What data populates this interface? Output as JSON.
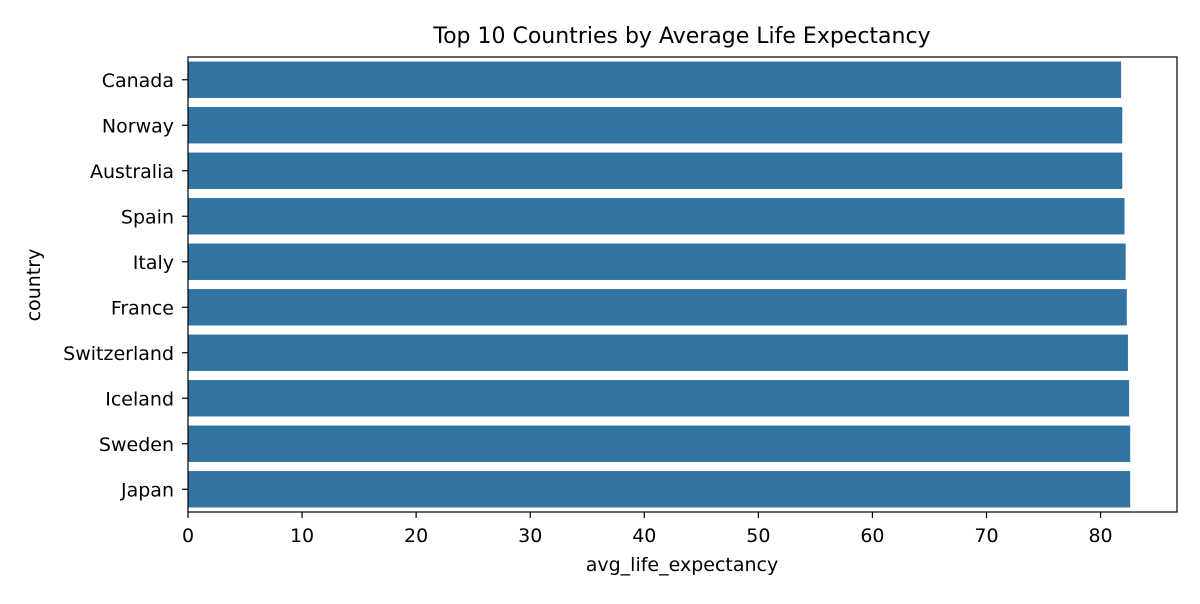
{
  "chart_data": {
    "type": "bar",
    "orientation": "horizontal",
    "title": "Top 10 Countries by Average Life Expectancy",
    "xlabel": "avg_life_expectancy",
    "ylabel": "country",
    "categories": [
      "Canada",
      "Norway",
      "Australia",
      "Spain",
      "Italy",
      "France",
      "Switzerland",
      "Iceland",
      "Sweden",
      "Japan"
    ],
    "values": [
      81.8,
      81.9,
      81.9,
      82.1,
      82.2,
      82.3,
      82.4,
      82.5,
      82.6,
      82.6
    ],
    "xlim": [
      0,
      86.7
    ],
    "xticks": [
      0,
      10,
      20,
      30,
      40,
      50,
      60,
      70,
      80
    ],
    "grid": false,
    "legend": "none",
    "bar_color": "#3274a1"
  }
}
